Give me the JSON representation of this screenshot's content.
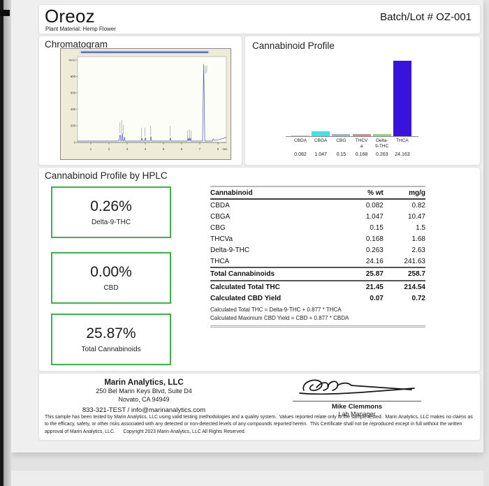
{
  "header": {
    "product_name": "Oreoz",
    "plant_material": "Plant Material: Hemp Flower",
    "batch_lot": "Batch/Lot # OZ-001"
  },
  "chromatogram": {
    "section_title": "Chromatogram",
    "y_ticks": [
      "mAU",
      "800",
      "600",
      "400",
      "200",
      "0"
    ],
    "x_ticks": [
      "1",
      "2",
      "3",
      "4",
      "5",
      "6",
      "7",
      "8",
      "min"
    ]
  },
  "chart_data": {
    "type": "bar",
    "title": "Cannabinoid Profile",
    "categories": [
      "CBDA",
      "CBGA",
      "CBG",
      "THCVa",
      "Delta-9-THC",
      "THCA"
    ],
    "category_display": [
      [
        "CBDA"
      ],
      [
        "CBGA"
      ],
      [
        "CBG"
      ],
      [
        "THCV",
        "a"
      ],
      [
        "Delta-",
        "9-THC"
      ],
      [
        "THCA"
      ]
    ],
    "values": [
      0.082,
      1.047,
      0.15,
      0.168,
      0.263,
      24.163
    ],
    "value_labels": [
      "0.082",
      "1.047",
      "0.15",
      "0.168",
      "0.263",
      "24.163"
    ],
    "bar_colors": [
      "#a8d8a8",
      "#3ee4e4",
      "#9db6c9",
      "#c9929b",
      "#8fd97c",
      "#3a12de"
    ],
    "xlabel": "",
    "ylabel": "",
    "ylim": [
      0,
      25
    ],
    "legend_position": "none",
    "grid": false
  },
  "hplc": {
    "section_title": "Cannabinoid Profile by HPLC",
    "highlights": [
      {
        "value": "0.26%",
        "label": "Delta-9-THC"
      },
      {
        "value": "0.00%",
        "label": "CBD"
      },
      {
        "value": "25.87%",
        "label": "Total Cannabinoids"
      }
    ],
    "table": {
      "columns": [
        "Cannabinoid",
        "% wt",
        "mg/g"
      ],
      "rows": [
        [
          "CBDA",
          "0.082",
          "0.82"
        ],
        [
          "CBGA",
          "1.047",
          "10.47"
        ],
        [
          "CBG",
          "0.15",
          "1.5"
        ],
        [
          "THCVa",
          "0.168",
          "1.68"
        ],
        [
          "Delta-9-THC",
          "0.263",
          "2.63"
        ],
        [
          "THCA",
          "24.16",
          "241.63"
        ]
      ],
      "summary_rows": [
        [
          "Total Cannabinoids",
          "25.87",
          "258.7"
        ],
        [
          "Calculated Total THC",
          "21.45",
          "214.54"
        ],
        [
          "Calculated CBD Yield",
          "0.07",
          "0.72"
        ]
      ],
      "footnotes": [
        "Calculated Total THC = Delta-9-THC + 0.877 * THCA",
        "Calculated Maximum CBD Yield = CBD + 0.877 * CBDA"
      ]
    }
  },
  "footer": {
    "lab_name": "Marin Analytics, LLC",
    "address_line1": "250 Bel Marin Keys Blvd, Suite D4",
    "address_line2": "Novato, CA 94949",
    "contact": "833-321-TEST / info@marinanalytics.com",
    "signer_name": "Mike Clemmons",
    "signer_title": "Lab Manager",
    "disclaimer": "This sample has been tested by Marin Analytics, LLC using valid testing methodologies and a quality system.  Values reported relate only to the sample tested.  Marin Analytics, LLC makes no claims as to the efficacy, safety, or other risks associated with any detected or non-detected levels of any compounds reported herein.  This Certificate shall not be reproduced except in full without the written approval of Marin Analytics, LLC.      Copyright 2023 Marin Analytics, LLC All Rights Reserved."
  }
}
